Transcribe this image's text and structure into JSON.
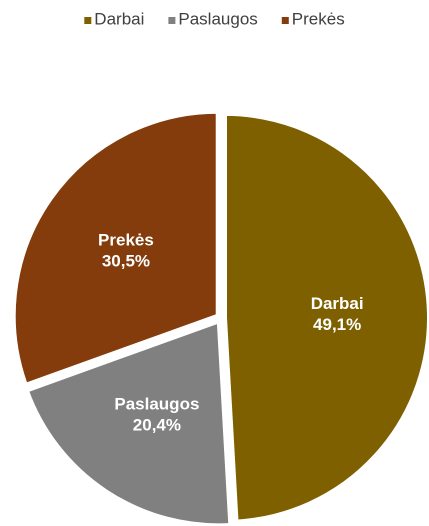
{
  "chart_data": {
    "type": "pie",
    "categories": [
      "Darbai",
      "Paslaugos",
      "Prekės"
    ],
    "values": [
      49.1,
      20.4,
      30.5
    ],
    "value_labels": [
      "49,1%",
      "20,4%",
      "30,5%"
    ],
    "colors": [
      "#7f6000",
      "#808080",
      "#843c0c"
    ],
    "legend": "top"
  }
}
